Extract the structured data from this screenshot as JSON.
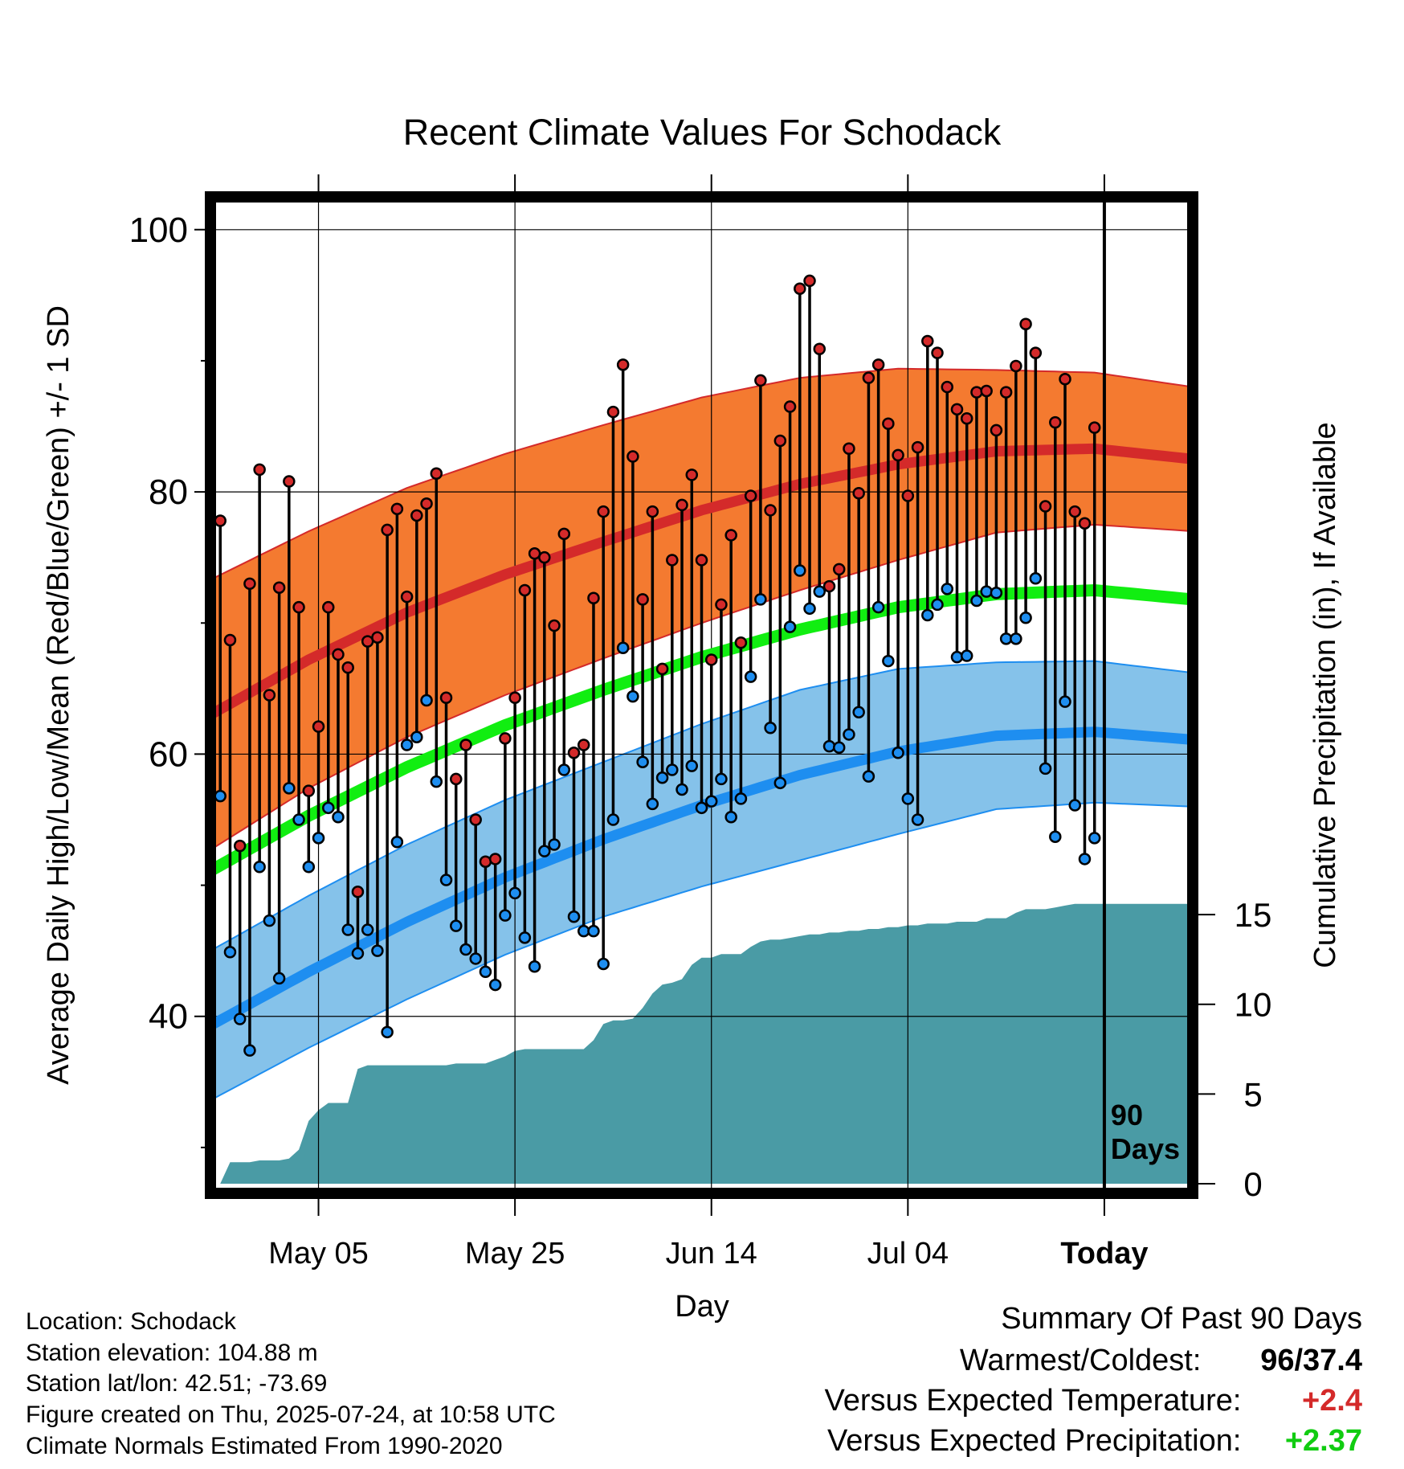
{
  "chart_data": {
    "type": "line",
    "title": "Recent Climate Values For Schodack",
    "xlabel": "Day",
    "ylabel": "Average Daily High/Low/Mean (Red/Blue/Green) +/- 1 SD",
    "y2label": "Cumulative Precipitation (in), If Available",
    "ylim": [
      26.5,
      102.5
    ],
    "y2lim": [
      0,
      55
    ],
    "y_ticks": [
      "40",
      "60",
      "80",
      "100"
    ],
    "y2_ticks": [
      "0",
      "5",
      "10",
      "15"
    ],
    "x_ticks": [
      "May 05",
      "May 25",
      "Jun 14",
      "Jul 04",
      "Today"
    ],
    "x_tick_days": [
      11,
      31,
      51,
      71,
      91
    ],
    "xlim": [
      0,
      100
    ],
    "grid": true,
    "marker_label": "90\nDays",
    "colors": {
      "high": "#d42a2a",
      "high_band": "#f47a30",
      "low": "#1e8ef0",
      "low_band": "#85c2ea",
      "mean": "#11ee11",
      "precip": "#4a9ba5"
    },
    "normals": {
      "days": [
        0,
        10,
        20,
        30,
        40,
        50,
        60,
        70,
        80,
        90,
        100
      ],
      "high_mean": [
        63,
        67.2,
        70.8,
        73.7,
        76.2,
        78.6,
        80.6,
        82.1,
        83.1,
        83.3,
        82.5
      ],
      "high_sd": [
        10.3,
        9.8,
        9.5,
        9.2,
        8.9,
        8.6,
        8.1,
        7.3,
        6.2,
        5.8,
        5.5
      ],
      "low_mean": [
        39.3,
        43.4,
        47.2,
        50.6,
        53.5,
        56.1,
        58.4,
        60.2,
        61.4,
        61.7,
        61.1
      ],
      "low_sd": [
        5.7,
        5.8,
        5.9,
        5.9,
        5.9,
        6.2,
        6.5,
        6.3,
        5.6,
        5.4,
        5.1
      ],
      "mean": [
        51.1,
        55.3,
        59,
        62.2,
        64.9,
        67.4,
        69.5,
        71.2,
        72.2,
        72.5,
        71.8
      ]
    },
    "series": [
      {
        "name": "High",
        "values": [
          77.8,
          68.7,
          53,
          73,
          81.7,
          64.5,
          72.7,
          80.8,
          71.2,
          57.2,
          62.1,
          71.2,
          67.6,
          66.6,
          49.5,
          68.6,
          68.9,
          77.1,
          78.7,
          72,
          78.2,
          79.1,
          81.4,
          64.3,
          58.1,
          60.7,
          55,
          51.8,
          52,
          61.2,
          64.3,
          72.5,
          75.3,
          75,
          69.8,
          76.8,
          60.1,
          60.7,
          71.9,
          78.5,
          86.1,
          89.7,
          82.7,
          71.8,
          78.5,
          66.5,
          74.8,
          79,
          81.3,
          74.8,
          67.2,
          71.4,
          76.7,
          68.5,
          79.7,
          88.5,
          78.6,
          83.9,
          86.5,
          95.5,
          96.1,
          90.9,
          72.8,
          74.1,
          83.3,
          79.9,
          88.7,
          89.7,
          85.2,
          82.8,
          79.7,
          83.4,
          91.5,
          90.6,
          88,
          86.3,
          85.6,
          87.6,
          87.7,
          84.7,
          87.6,
          89.6,
          92.8,
          90.6,
          78.9,
          85.3,
          88.6,
          78.5,
          77.6,
          84.9
        ]
      },
      {
        "name": "Low",
        "values": [
          56.8,
          44.9,
          39.8,
          37.4,
          51.4,
          47.3,
          42.9,
          57.4,
          55,
          51.4,
          53.6,
          55.9,
          55.2,
          46.6,
          44.8,
          46.6,
          45,
          38.8,
          53.3,
          60.7,
          61.3,
          64.1,
          57.9,
          50.4,
          46.9,
          45.1,
          44.4,
          43.4,
          42.4,
          47.7,
          49.4,
          46,
          43.8,
          52.6,
          53.1,
          58.8,
          47.6,
          46.5,
          46.5,
          44,
          55,
          68.1,
          64.4,
          59.4,
          56.2,
          58.2,
          58.8,
          57.3,
          59.1,
          55.9,
          56.4,
          58.1,
          55.2,
          56.6,
          65.9,
          71.8,
          62,
          57.8,
          69.7,
          74,
          71.1,
          72.4,
          60.6,
          60.5,
          61.5,
          63.2,
          58.3,
          71.2,
          67.1,
          60.1,
          56.6,
          55,
          70.6,
          71.4,
          72.6,
          67.4,
          67.5,
          71.7,
          72.4,
          72.3,
          68.8,
          68.8,
          70.4,
          73.4,
          58.9,
          53.7,
          64,
          56.1,
          52,
          53.6
        ]
      },
      {
        "name": "Precipitation",
        "values": [
          0,
          1.2,
          1.2,
          1.2,
          1.3,
          1.3,
          1.3,
          1.4,
          1.9,
          3.5,
          4.1,
          4.5,
          4.5,
          4.5,
          6.4,
          6.6,
          6.6,
          6.6,
          6.6,
          6.6,
          6.6,
          6.6,
          6.6,
          6.6,
          6.7,
          6.7,
          6.7,
          6.7,
          6.9,
          7.1,
          7.4,
          7.5,
          7.5,
          7.5,
          7.5,
          7.5,
          7.5,
          7.5,
          8,
          8.9,
          9.1,
          9.1,
          9.2,
          9.8,
          10.6,
          11.1,
          11.2,
          11.4,
          12.2,
          12.6,
          12.6,
          12.8,
          12.8,
          12.8,
          13.2,
          13.5,
          13.6,
          13.6,
          13.7,
          13.8,
          13.9,
          13.9,
          14,
          14,
          14.1,
          14.1,
          14.2,
          14.2,
          14.3,
          14.3,
          14.4,
          14.4,
          14.5,
          14.5,
          14.5,
          14.6,
          14.6,
          14.6,
          14.8,
          14.8,
          14.8,
          15.1,
          15.3,
          15.3,
          15.3,
          15.4,
          15.5,
          15.6,
          15.6,
          15.6
        ]
      }
    ]
  },
  "info": {
    "location": "Location: Schodack",
    "elevation": "Station elevation: 104.88 m",
    "latlon": "Station lat/lon: 42.51; -73.69",
    "created": "Figure created on Thu, 2025-07-24, at 10:58 UTC",
    "normals": "Climate Normals Estimated From 1990-2020"
  },
  "summary": {
    "heading": "Summary Of Past 90 Days",
    "warmest_label": "Warmest/Coldest:",
    "warmest_value": "96/37.4",
    "temp_label": "Versus Expected Temperature:",
    "temp_value": "+2.4",
    "temp_color": "#d42a2a",
    "precip_label": "Versus Expected Precipitation:",
    "precip_value": "+2.37",
    "precip_color": "#11cc11"
  }
}
